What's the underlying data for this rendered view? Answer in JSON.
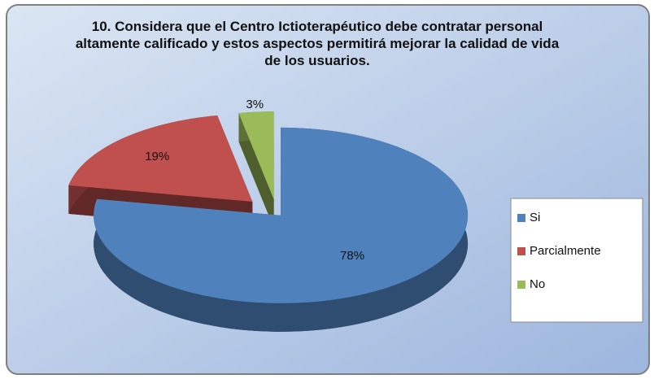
{
  "chart_data": {
    "type": "pie3d",
    "title": "10.  Considera que el Centro Ictioterapéutico  debe contratar personal altamente calificado y estos aspectos permitirá mejorar la calidad de vida  de los usuarios.",
    "categories": [
      "Si",
      "Parcialmente",
      "No"
    ],
    "values": [
      78,
      19,
      3
    ],
    "value_labels": [
      "78%",
      "19%",
      "3%"
    ],
    "colors": [
      "#4f81bd",
      "#c0504d",
      "#9bbb59"
    ],
    "legend": "right"
  }
}
